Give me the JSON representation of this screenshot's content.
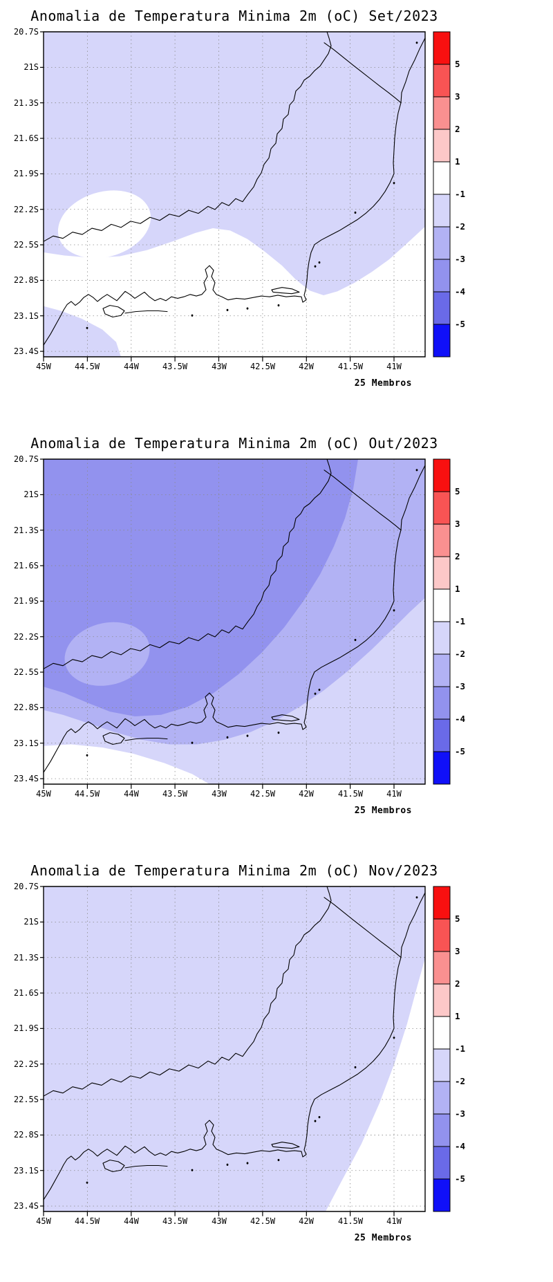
{
  "colors": {
    "map_fill": {
      "white": "#ffffff",
      "light": "#d6d6fa",
      "medium": "#b2b2f4",
      "dark": "#9292ee"
    },
    "colorbar_top_to_bottom": [
      "#f81010",
      "#f85454",
      "#fa9090",
      "#fcc8c8",
      "#ffffff",
      "#d6d6fa",
      "#b2b2f4",
      "#9292ee",
      "#6a6ae8",
      "#1010f8"
    ]
  },
  "axes": {
    "lat_labels": [
      "20.7S",
      "21S",
      "21.3S",
      "21.6S",
      "21.9S",
      "22.2S",
      "22.5S",
      "22.8S",
      "23.1S",
      "23.4S"
    ],
    "lon_labels": [
      "45W",
      "44.5W",
      "44W",
      "43.5W",
      "43W",
      "42.5W",
      "42W",
      "41.5W",
      "41W"
    ]
  },
  "colorbar": {
    "labels": [
      "5",
      "3",
      "2",
      "1",
      "-1",
      "-2",
      "-3",
      "-4",
      "-5"
    ]
  },
  "panels": [
    {
      "title": "Anomalia de Temperatura Minima 2m (oC) Set/2023",
      "footnote": "25 Membros"
    },
    {
      "title": "Anomalia de Temperatura Minima 2m (oC) Out/2023",
      "footnote": "25 Membros"
    },
    {
      "title": "Anomalia de Temperatura Minima 2m (oC) Nov/2023",
      "footnote": "25 Membros"
    }
  ],
  "chart_data": [
    {
      "type": "heatmap",
      "title": "Anomalia de Temperatura Minima 2m (oC) Set/2023",
      "month": "Set/2023",
      "variable": "2 m minimum temperature anomaly",
      "units": "oC",
      "ensemble_label": "25 Membros",
      "x_ticks": [
        "45W",
        "44.5W",
        "44W",
        "43.5W",
        "43W",
        "42.5W",
        "42W",
        "41.5W",
        "41W"
      ],
      "y_ticks": [
        "20.7S",
        "21S",
        "21.3S",
        "21.6S",
        "21.9S",
        "22.2S",
        "22.5S",
        "22.8S",
        "23.1S",
        "23.4S"
      ],
      "legend_levels": [
        5,
        3,
        2,
        1,
        -1,
        -2,
        -3,
        -4,
        -5
      ],
      "legend_position": "right",
      "grid": "dotted",
      "regions": [
        {
          "anomaly_range_oC": [
            -2,
            -1
          ],
          "where": "northern and western portion of the domain and upper-right area"
        },
        {
          "anomaly_range_oC": [
            -1,
            1
          ],
          "where": "south-central band, southeast coast and offshore; small inland patch near 44.4W 22.2S"
        }
      ]
    },
    {
      "type": "heatmap",
      "title": "Anomalia de Temperatura Minima 2m (oC) Out/2023",
      "month": "Out/2023",
      "variable": "2 m minimum temperature anomaly",
      "units": "oC",
      "ensemble_label": "25 Membros",
      "x_ticks": [
        "45W",
        "44.5W",
        "44W",
        "43.5W",
        "43W",
        "42.5W",
        "42W",
        "41.5W",
        "41W"
      ],
      "y_ticks": [
        "20.7S",
        "21S",
        "21.3S",
        "21.6S",
        "21.9S",
        "22.2S",
        "22.5S",
        "22.8S",
        "23.1S",
        "23.4S"
      ],
      "legend_levels": [
        5,
        3,
        2,
        1,
        -1,
        -2,
        -3,
        -4,
        -5
      ],
      "legend_position": "right",
      "grid": "dotted",
      "regions": [
        {
          "anomaly_range_oC": [
            -4,
            -3
          ],
          "where": "northwest interior"
        },
        {
          "anomaly_range_oC": [
            -3,
            -2
          ],
          "where": "northeast half and lighter patch near 44.4W 22.1S"
        },
        {
          "anomaly_range_oC": [
            -2,
            -1
          ],
          "where": "southern coastal band and offshore southeast"
        },
        {
          "anomaly_range_oC": [
            -1,
            1
          ],
          "where": "far southwest coastal corner"
        }
      ]
    },
    {
      "type": "heatmap",
      "title": "Anomalia de Temperatura Minima 2m (oC) Nov/2023",
      "month": "Nov/2023",
      "variable": "2 m minimum temperature anomaly",
      "units": "oC",
      "ensemble_label": "25 Membros",
      "x_ticks": [
        "45W",
        "44.5W",
        "44W",
        "43.5W",
        "43W",
        "42.5W",
        "42W",
        "41.5W",
        "41W"
      ],
      "y_ticks": [
        "20.7S",
        "21S",
        "21.3S",
        "21.6S",
        "21.9S",
        "22.2S",
        "22.5S",
        "22.8S",
        "23.1S",
        "23.4S"
      ],
      "legend_levels": [
        5,
        3,
        2,
        1,
        -1,
        -2,
        -3,
        -4,
        -5
      ],
      "legend_position": "right",
      "grid": "dotted",
      "regions": [
        {
          "anomaly_range_oC": [
            -2,
            -1
          ],
          "where": "nearly the entire domain"
        },
        {
          "anomaly_range_oC": [
            -1,
            1
          ],
          "where": "offshore southeast corner wedge"
        }
      ]
    }
  ]
}
